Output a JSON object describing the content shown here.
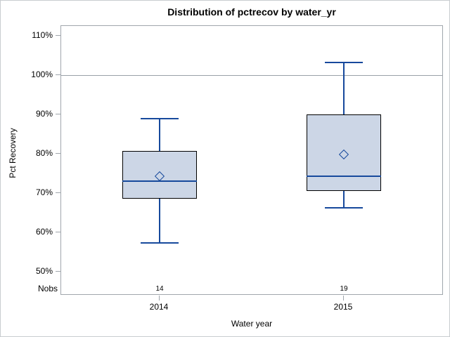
{
  "chart_data": {
    "type": "boxplot",
    "title": "Distribution of pctrecov by water_yr",
    "xlabel": "Water year",
    "ylabel": "Pct Recovery",
    "y_tick_labels": [
      "110%",
      "100%",
      "90%",
      "80%",
      "70%",
      "60%",
      "50%"
    ],
    "ylim": [
      44,
      112.5
    ],
    "grid": "off",
    "legend": "none",
    "reference_line": 100,
    "nobs_row_label": "Nobs",
    "groups": [
      {
        "label": "2014",
        "nobs": "14",
        "min": 57.3,
        "q1": 68.5,
        "median": 73.0,
        "mean": 74.3,
        "q3": 80.7,
        "max": 89.0
      },
      {
        "label": "2015",
        "nobs": "19",
        "min": 66.3,
        "q1": 70.5,
        "median": 74.2,
        "mean": 79.9,
        "q3": 90.0,
        "max": 103.3
      }
    ],
    "colors": {
      "box_fill": "#ccd6e6",
      "box_border": "#000000",
      "whisker": "#17499c",
      "median": "#17499c",
      "mean_marker": "#17499c",
      "reference_line": "#9aa1a7",
      "frame": "#a0a6ac",
      "text": "#000000"
    }
  }
}
